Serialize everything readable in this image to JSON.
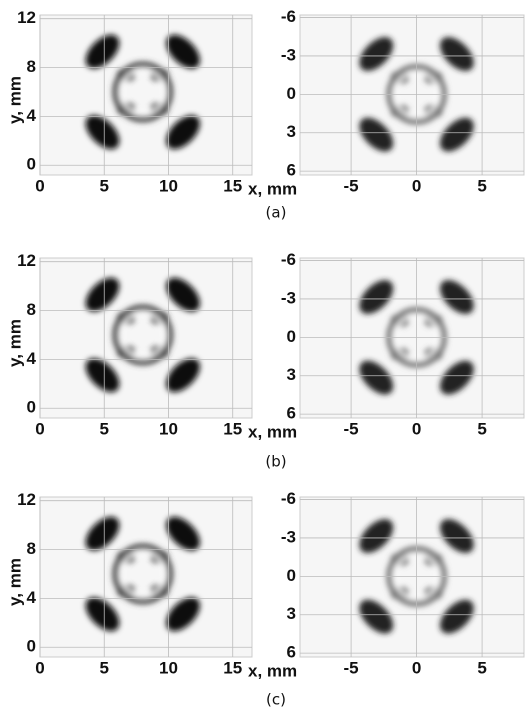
{
  "captions": [
    "(a)",
    "(b)",
    "(c)"
  ],
  "chart_data": [
    {
      "type": "image",
      "xlabel": "x, mm",
      "ylabel": "y, mm",
      "xlim": [
        0,
        16.5
      ],
      "ylim": [
        -0.8,
        12.3
      ],
      "xticks": [
        0,
        5,
        10,
        15
      ],
      "yticks": [
        0,
        4,
        8,
        12
      ],
      "grid": true
    },
    {
      "type": "image",
      "xlim": [
        -8.9,
        8.2
      ],
      "ylim": [
        6.3,
        -6.2
      ],
      "xticks": [
        -5,
        0,
        5
      ],
      "yticks": [
        -6,
        -3,
        0,
        3,
        6
      ],
      "grid": true
    },
    {
      "type": "image",
      "xlabel": "x, mm",
      "ylabel": "y, mm",
      "xlim": [
        0,
        16.5
      ],
      "ylim": [
        -0.8,
        12.3
      ],
      "xticks": [
        0,
        5,
        10,
        15
      ],
      "yticks": [
        0,
        4,
        8,
        12
      ],
      "grid": true
    },
    {
      "type": "image",
      "xlim": [
        -8.9,
        8.2
      ],
      "ylim": [
        6.3,
        -6.2
      ],
      "xticks": [
        -5,
        0,
        5
      ],
      "yticks": [
        -6,
        -3,
        0,
        3,
        6
      ],
      "grid": true
    },
    {
      "type": "image",
      "xlabel": "x, mm",
      "ylabel": "y, mm",
      "xlim": [
        0,
        16.5
      ],
      "ylim": [
        -0.8,
        12.3
      ],
      "xticks": [
        0,
        5,
        10,
        15
      ],
      "yticks": [
        0,
        4,
        8,
        12
      ],
      "grid": true
    },
    {
      "type": "image",
      "xlim": [
        -8.9,
        8.2
      ],
      "ylim": [
        6.3,
        -6.2
      ],
      "xticks": [
        -5,
        0,
        5
      ],
      "yticks": [
        -6,
        -3,
        0,
        3,
        6
      ],
      "grid": true
    }
  ]
}
